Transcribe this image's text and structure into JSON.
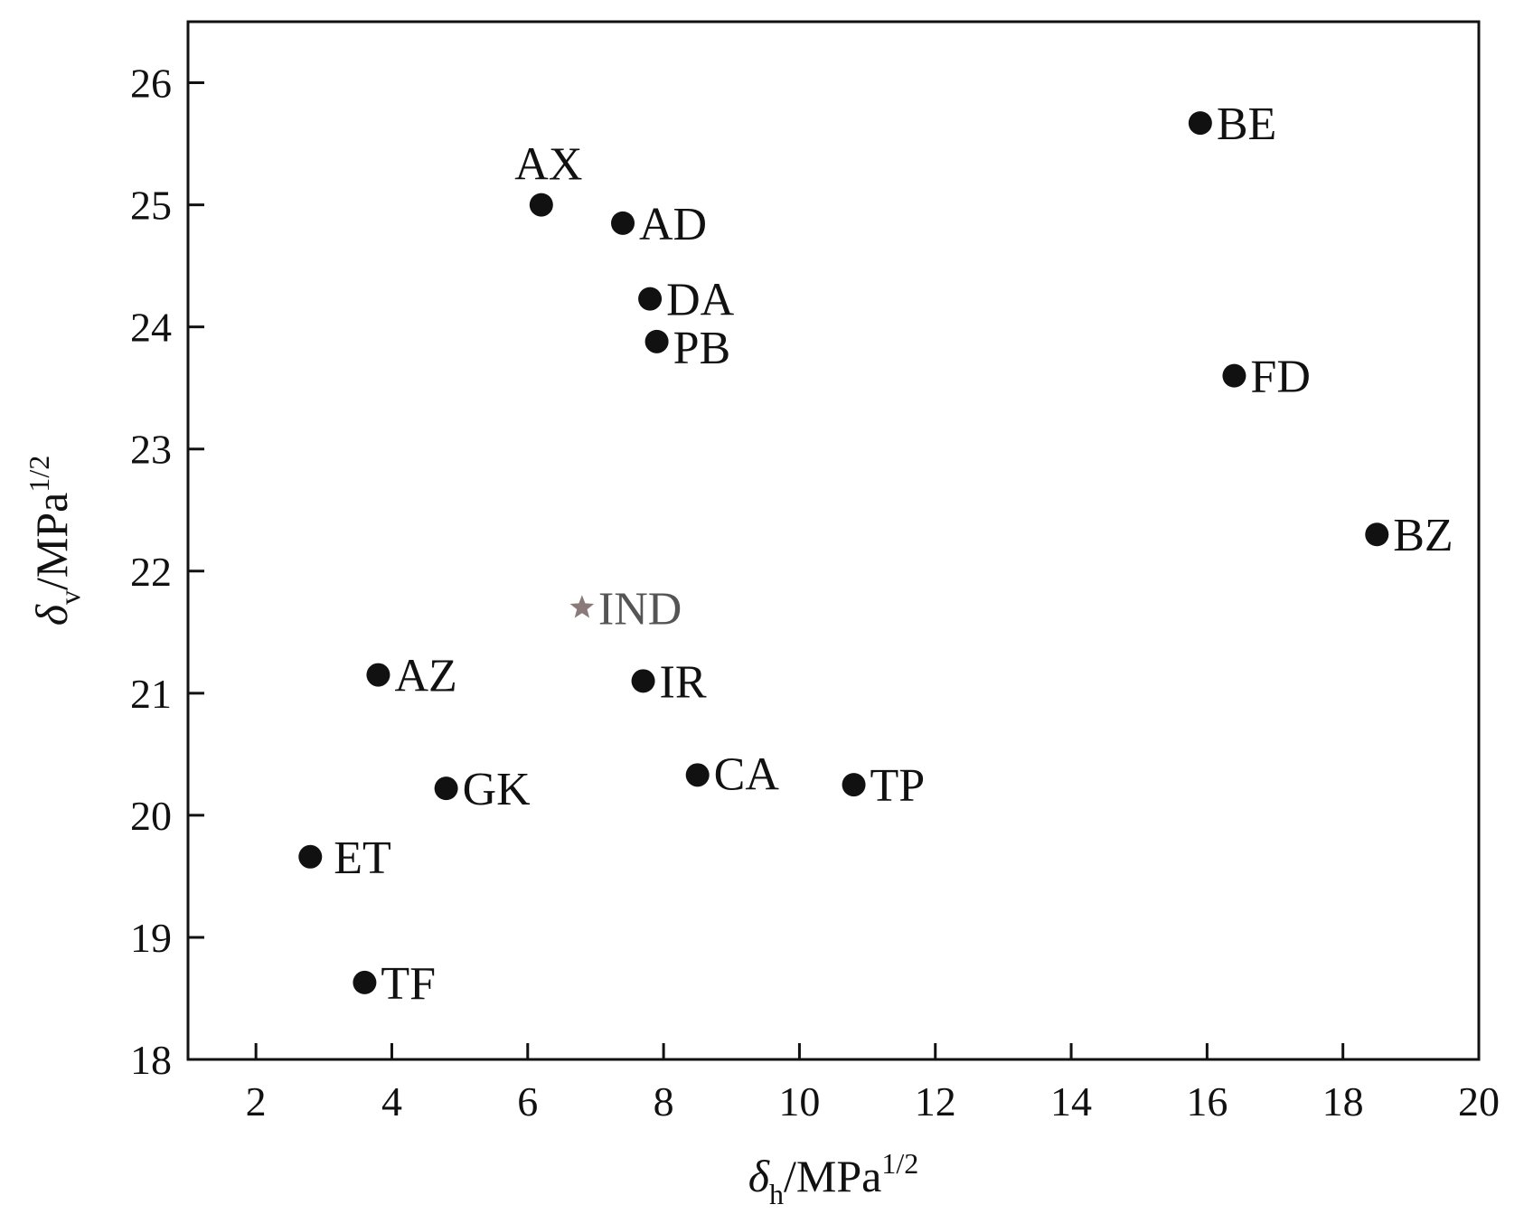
{
  "chart_data": {
    "type": "scatter",
    "title": "",
    "xlabel": {
      "symbol": "δ",
      "sub": "h",
      "unit": "/MPa",
      "sup": "1/2"
    },
    "ylabel": {
      "symbol": "δ",
      "sub": "v",
      "unit": "/MPa",
      "sup": "1/2"
    },
    "xlim": [
      1,
      20
    ],
    "ylim": [
      18,
      26.5
    ],
    "xticks": [
      "2",
      "4",
      "6",
      "8",
      "10",
      "12",
      "14",
      "16",
      "18",
      "20"
    ],
    "yticks": [
      "18",
      "19",
      "20",
      "21",
      "22",
      "23",
      "24",
      "25",
      "26"
    ],
    "grid": false,
    "points": [
      {
        "label": "AX",
        "x": 6.2,
        "y": 25.0,
        "marker": "circle",
        "color": "#111111",
        "label_pos": "above"
      },
      {
        "label": "AD",
        "x": 7.4,
        "y": 24.85,
        "marker": "circle",
        "color": "#111111",
        "label_pos": "right"
      },
      {
        "label": "DA",
        "x": 7.8,
        "y": 24.23,
        "marker": "circle",
        "color": "#111111",
        "label_pos": "right"
      },
      {
        "label": "PB",
        "x": 7.9,
        "y": 23.88,
        "marker": "circle",
        "color": "#111111",
        "label_pos": "right-low"
      },
      {
        "label": "BE",
        "x": 15.9,
        "y": 25.67,
        "marker": "circle",
        "color": "#111111",
        "label_pos": "right"
      },
      {
        "label": "FD",
        "x": 16.4,
        "y": 23.6,
        "marker": "circle",
        "color": "#111111",
        "label_pos": "right"
      },
      {
        "label": "BZ",
        "x": 18.5,
        "y": 22.3,
        "marker": "circle",
        "color": "#111111",
        "label_pos": "right"
      },
      {
        "label": "IND",
        "x": 6.8,
        "y": 21.7,
        "marker": "star",
        "color": "#8a7a7a",
        "label_pos": "right"
      },
      {
        "label": "AZ",
        "x": 3.8,
        "y": 21.15,
        "marker": "circle",
        "color": "#111111",
        "label_pos": "right"
      },
      {
        "label": "IR",
        "x": 7.7,
        "y": 21.1,
        "marker": "circle",
        "color": "#111111",
        "label_pos": "right"
      },
      {
        "label": "CA",
        "x": 8.5,
        "y": 20.33,
        "marker": "circle",
        "color": "#111111",
        "label_pos": "right-high"
      },
      {
        "label": "TP",
        "x": 10.8,
        "y": 20.25,
        "marker": "circle",
        "color": "#111111",
        "label_pos": "right"
      },
      {
        "label": "GK",
        "x": 4.8,
        "y": 20.22,
        "marker": "circle",
        "color": "#111111",
        "label_pos": "right"
      },
      {
        "label": "ET",
        "x": 2.8,
        "y": 19.66,
        "marker": "circle",
        "color": "#111111",
        "label_pos": "right-wide"
      },
      {
        "label": "TF",
        "x": 3.6,
        "y": 18.63,
        "marker": "circle",
        "color": "#111111",
        "label_pos": "right"
      }
    ]
  }
}
